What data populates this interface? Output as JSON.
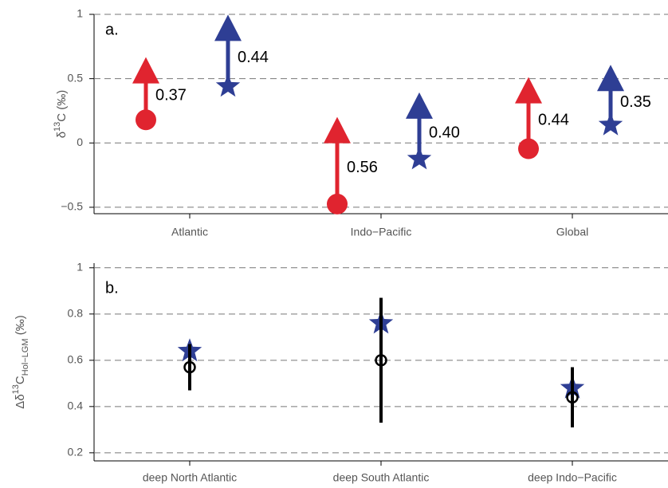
{
  "chart_data": [
    {
      "type": "arrow",
      "panel_label": "a.",
      "ylabel": {
        "prefix": "δ",
        "sup": "13",
        "main": "C (‰)"
      },
      "categories": [
        "Atlantic",
        "Indo−Pacific",
        "Global"
      ],
      "ylim": [
        -0.55,
        1.0
      ],
      "yticks": [
        {
          "value": -0.5,
          "label": "−0.5"
        },
        0,
        0.5,
        1
      ],
      "grid": true,
      "series": [
        {
          "color": "#e0242f",
          "marker": "circle",
          "values": [
            0.18,
            -0.475,
            -0.045
          ],
          "changes": [
            0.37,
            0.56,
            0.44
          ],
          "change_labels": [
            "0.37",
            "0.56",
            "0.44"
          ]
        },
        {
          "color": "#2e3e94",
          "marker": "star",
          "values": [
            0.44,
            -0.125,
            0.14
          ],
          "changes": [
            0.44,
            0.4,
            0.35
          ],
          "change_labels": [
            "0.44",
            "0.40",
            "0.35"
          ]
        }
      ]
    },
    {
      "type": "errorpoint",
      "panel_label": "b.",
      "ylabel": {
        "prefix": "Δδ",
        "sup": "13",
        "main": "C",
        "sub": "Hol−LGM",
        "unit": " (‰)"
      },
      "categories": [
        "deep North Atlantic",
        "deep South Atlantic",
        "deep Indo−Pacific"
      ],
      "ylim": [
        0.165,
        1.02
      ],
      "yticks": [
        0.2,
        0.4,
        0.6,
        0.8,
        1
      ],
      "grid": true,
      "series": [
        {
          "color": "#2e3e94",
          "marker": "star",
          "values": [
            0.64,
            0.76,
            0.48
          ]
        },
        {
          "color": "#000000",
          "marker": "open-circle",
          "values": [
            0.57,
            0.6,
            0.44
          ],
          "errors": [
            0.1,
            0.27,
            0.13
          ]
        }
      ]
    }
  ]
}
